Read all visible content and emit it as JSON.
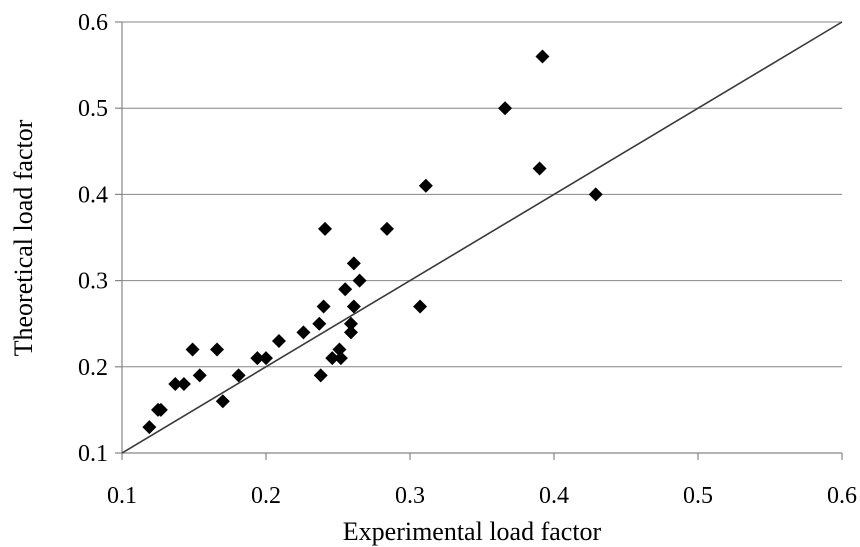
{
  "chart_data": {
    "type": "scatter",
    "title": "",
    "xlabel": "Experimental load factor",
    "ylabel": "Theoretical load factor",
    "xlim": [
      0.1,
      0.6
    ],
    "ylim": [
      0.1,
      0.6
    ],
    "xticks": [
      "0.1",
      "0.2",
      "0.3",
      "0.4",
      "0.5",
      "0.6"
    ],
    "yticks": [
      "0.1",
      "0.2",
      "0.3",
      "0.4",
      "0.5",
      "0.6"
    ],
    "grid": "horizontal",
    "legend": "none",
    "marker": "diamond",
    "colors": {
      "points": "#000000",
      "reference_line": "#3a3a3a",
      "grid": "#868686"
    },
    "reference_line": {
      "x": [
        0.1,
        0.6
      ],
      "y": [
        0.1,
        0.6
      ]
    },
    "series": [
      {
        "points": [
          [
            0.119,
            0.13
          ],
          [
            0.125,
            0.15
          ],
          [
            0.127,
            0.15
          ],
          [
            0.137,
            0.18
          ],
          [
            0.143,
            0.18
          ],
          [
            0.149,
            0.22
          ],
          [
            0.154,
            0.19
          ],
          [
            0.166,
            0.22
          ],
          [
            0.17,
            0.16
          ],
          [
            0.181,
            0.19
          ],
          [
            0.194,
            0.21
          ],
          [
            0.2,
            0.21
          ],
          [
            0.209,
            0.23
          ],
          [
            0.226,
            0.24
          ],
          [
            0.237,
            0.25
          ],
          [
            0.238,
            0.19
          ],
          [
            0.24,
            0.27
          ],
          [
            0.241,
            0.36
          ],
          [
            0.246,
            0.21
          ],
          [
            0.251,
            0.22
          ],
          [
            0.252,
            0.21
          ],
          [
            0.255,
            0.29
          ],
          [
            0.259,
            0.25
          ],
          [
            0.259,
            0.24
          ],
          [
            0.261,
            0.32
          ],
          [
            0.261,
            0.27
          ],
          [
            0.265,
            0.3
          ],
          [
            0.284,
            0.36
          ],
          [
            0.307,
            0.27
          ],
          [
            0.311,
            0.41
          ],
          [
            0.366,
            0.5
          ],
          [
            0.39,
            0.43
          ],
          [
            0.392,
            0.56
          ],
          [
            0.429,
            0.4
          ]
        ]
      }
    ]
  }
}
